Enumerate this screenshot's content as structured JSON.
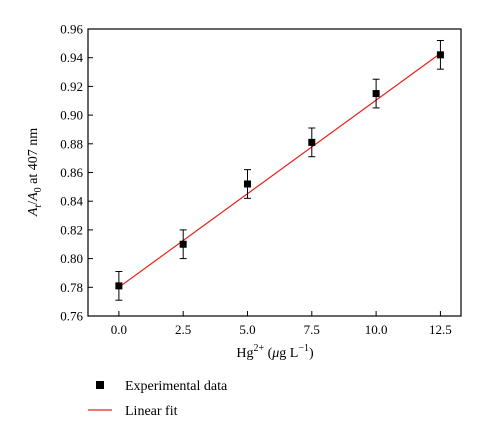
{
  "chart_data": {
    "type": "scatter",
    "title": "",
    "xlabel": {
      "base": "Hg",
      "sup": "2+",
      "open": " (",
      "mu": "μ",
      "unit": "g L",
      "unit_sup": "−1",
      "close": ")"
    },
    "ylabel": {
      "a1": "A",
      "s1": "t",
      "slash": "/",
      "a2": "A",
      "s2": "0",
      "rest": " at 407 nm"
    },
    "xlim": [
      -1.2,
      13.3
    ],
    "ylim": [
      0.76,
      0.96
    ],
    "x_ticks": [
      "0.0",
      "2.5",
      "5.0",
      "7.5",
      "10.0",
      "12.5"
    ],
    "y_ticks": [
      "0.76",
      "0.78",
      "0.80",
      "0.82",
      "0.84",
      "0.86",
      "0.88",
      "0.90",
      "0.92",
      "0.94",
      "0.96"
    ],
    "grid": false,
    "legend": "bottom-left",
    "series": [
      {
        "name": "Experimental data",
        "kind": "scatter",
        "color": "#000000",
        "x": [
          0.0,
          2.5,
          5.0,
          7.5,
          10.0,
          12.5
        ],
        "y": [
          0.781,
          0.81,
          0.852,
          0.881,
          0.915,
          0.942
        ],
        "error": [
          0.01,
          0.01,
          0.01,
          0.01,
          0.01,
          0.01
        ]
      },
      {
        "name": "Linear fit",
        "kind": "line",
        "color": "#e8201a",
        "x": [
          0.0,
          12.5
        ],
        "y": [
          0.78,
          0.943
        ]
      }
    ]
  }
}
